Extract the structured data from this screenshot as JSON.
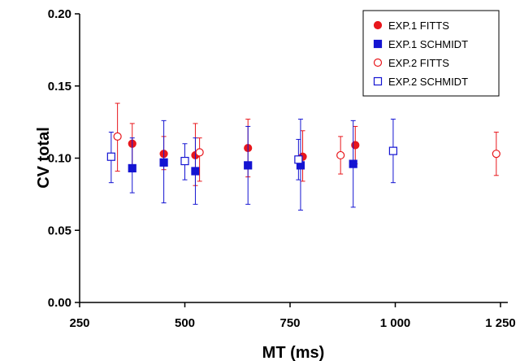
{
  "chart_data": {
    "type": "scatter",
    "title": "",
    "xlabel": "MT (ms)",
    "ylabel": "CV total",
    "xlim": [
      250,
      1250
    ],
    "ylim": [
      0.0,
      0.2
    ],
    "x_ticks": [
      250,
      500,
      750,
      1000,
      1250
    ],
    "x_tick_labels": [
      "250",
      "500",
      "750",
      "1 000",
      "1 250"
    ],
    "y_ticks": [
      0.0,
      0.05,
      0.1,
      0.15,
      0.2
    ],
    "y_tick_labels": [
      "0.00",
      "0.05",
      "0.10",
      "0.15",
      "0.20"
    ],
    "grid": false,
    "legend_position": "top-right",
    "series": [
      {
        "name": "EXP.1 FITTS",
        "color": "#e8171c",
        "marker": "circle-filled",
        "x": [
          375,
          450,
          525,
          650,
          780,
          905
        ],
        "y": [
          0.11,
          0.103,
          0.102,
          0.107,
          0.101,
          0.109
        ],
        "err_low": [
          0.094,
          0.092,
          0.081,
          0.087,
          0.084,
          0.096
        ],
        "err_high": [
          0.124,
          0.115,
          0.124,
          0.127,
          0.119,
          0.122
        ]
      },
      {
        "name": "EXP.1 SCHMIDT",
        "color": "#1414d2",
        "marker": "square-filled",
        "x": [
          375,
          450,
          525,
          650,
          775,
          900
        ],
        "y": [
          0.093,
          0.097,
          0.091,
          0.095,
          0.095,
          0.096
        ],
        "err_low": [
          0.076,
          0.069,
          0.068,
          0.068,
          0.064,
          0.066
        ],
        "err_high": [
          0.114,
          0.126,
          0.114,
          0.122,
          0.127,
          0.126
        ]
      },
      {
        "name": "EXP.2 FITTS",
        "color": "#e8171c",
        "marker": "circle-open",
        "x": [
          340,
          535,
          870,
          1240
        ],
        "y": [
          0.115,
          0.104,
          0.102,
          0.103
        ],
        "err_low": [
          0.091,
          0.084,
          0.089,
          0.088
        ],
        "err_high": [
          0.138,
          0.114,
          0.115,
          0.118
        ]
      },
      {
        "name": "EXP.2 SCHMIDT",
        "color": "#1414d2",
        "marker": "square-open",
        "x": [
          325,
          500,
          770,
          995
        ],
        "y": [
          0.101,
          0.098,
          0.099,
          0.105
        ],
        "err_low": [
          0.083,
          0.085,
          0.085,
          0.083
        ],
        "err_high": [
          0.118,
          0.11,
          0.113,
          0.127
        ]
      }
    ]
  }
}
